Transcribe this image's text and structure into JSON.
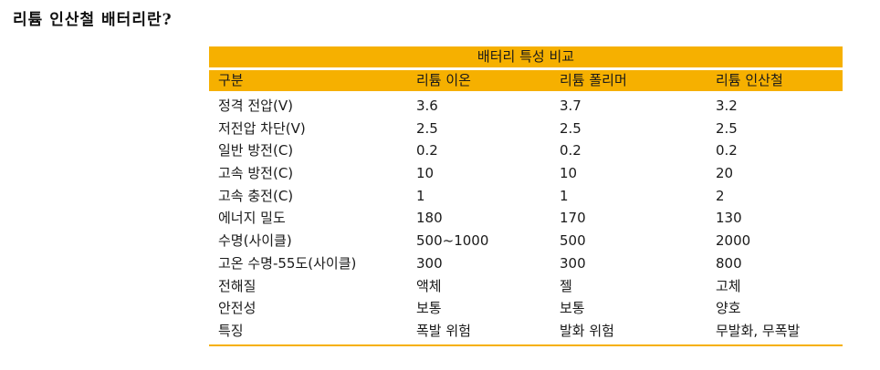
{
  "heading": "리튬 인산철 배터리란?",
  "table": {
    "title": "배터리 특성 비교",
    "columns": [
      "구분",
      "리튬 이온",
      "리튬 폴리머",
      "리튬 인산철"
    ],
    "rows": [
      [
        "정격 전압(V)",
        "3.6",
        "3.7",
        "3.2"
      ],
      [
        "저전압 차단(V)",
        "2.5",
        "2.5",
        "2.5"
      ],
      [
        "일반 방전(C)",
        "0.2",
        "0.2",
        "0.2"
      ],
      [
        "고속 방전(C)",
        "10",
        "10",
        "20"
      ],
      [
        "고속 충전(C)",
        "1",
        "1",
        "2"
      ],
      [
        "에너지 밀도",
        "180",
        "170",
        "130"
      ],
      [
        "수명(사이클)",
        "500~1000",
        "500",
        "2000"
      ],
      [
        "고온 수명-55도(사이클)",
        "300",
        "300",
        "800"
      ],
      [
        "전해질",
        "액체",
        "젤",
        "고체"
      ],
      [
        "안전성",
        "보통",
        "보통",
        "양호"
      ],
      [
        "특징",
        "폭발 위험",
        "발화 위험",
        "무발화, 무폭발"
      ]
    ]
  },
  "colors": {
    "accent": "#f6b000",
    "text": "#1a1a1a",
    "background": "#ffffff"
  }
}
